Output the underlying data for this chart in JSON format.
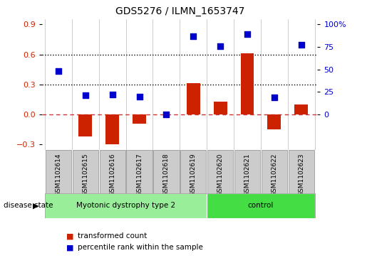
{
  "title": "GDS5276 / ILMN_1653747",
  "samples": [
    "GSM1102614",
    "GSM1102615",
    "GSM1102616",
    "GSM1102617",
    "GSM1102618",
    "GSM1102619",
    "GSM1102620",
    "GSM1102621",
    "GSM1102622",
    "GSM1102623"
  ],
  "transformed_count": [
    0.0,
    -0.22,
    -0.3,
    -0.09,
    0.0,
    0.31,
    0.13,
    0.61,
    -0.15,
    0.1
  ],
  "percentile_rank": [
    48,
    21,
    22,
    20,
    0,
    87,
    76,
    89,
    19,
    77
  ],
  "groups": [
    {
      "label": "Myotonic dystrophy type 2",
      "start": 0,
      "end": 5,
      "color": "#99EE99"
    },
    {
      "label": "control",
      "start": 6,
      "end": 9,
      "color": "#44DD44"
    }
  ],
  "bar_color": "#CC2200",
  "dot_color": "#0000CC",
  "ylim_left": [
    -0.35,
    0.95
  ],
  "ylim_right": [
    -4.17,
    119.4
  ],
  "yticks_left": [
    -0.3,
    0.0,
    0.3,
    0.6,
    0.9
  ],
  "yticks_right": [
    0,
    25,
    50,
    75,
    100
  ],
  "ytick_labels_right": [
    "0",
    "25",
    "50",
    "75",
    "100%"
  ],
  "hlines": [
    0.3,
    0.6
  ],
  "hline_zero_color": "#CC3333",
  "bar_width": 0.5,
  "dot_size": 35,
  "disease_state_label": "disease state",
  "legend_items": [
    {
      "label": "transformed count",
      "color": "#CC2200"
    },
    {
      "label": "percentile rank within the sample",
      "color": "#0000CC"
    }
  ],
  "tick_label_color_left": "#CC2200",
  "tick_label_color_right": "#0000CC",
  "group1_color": "#99EE99",
  "group2_color": "#44DD44",
  "xticklabel_bg": "#CCCCCC",
  "xticklabel_border": "#999999"
}
